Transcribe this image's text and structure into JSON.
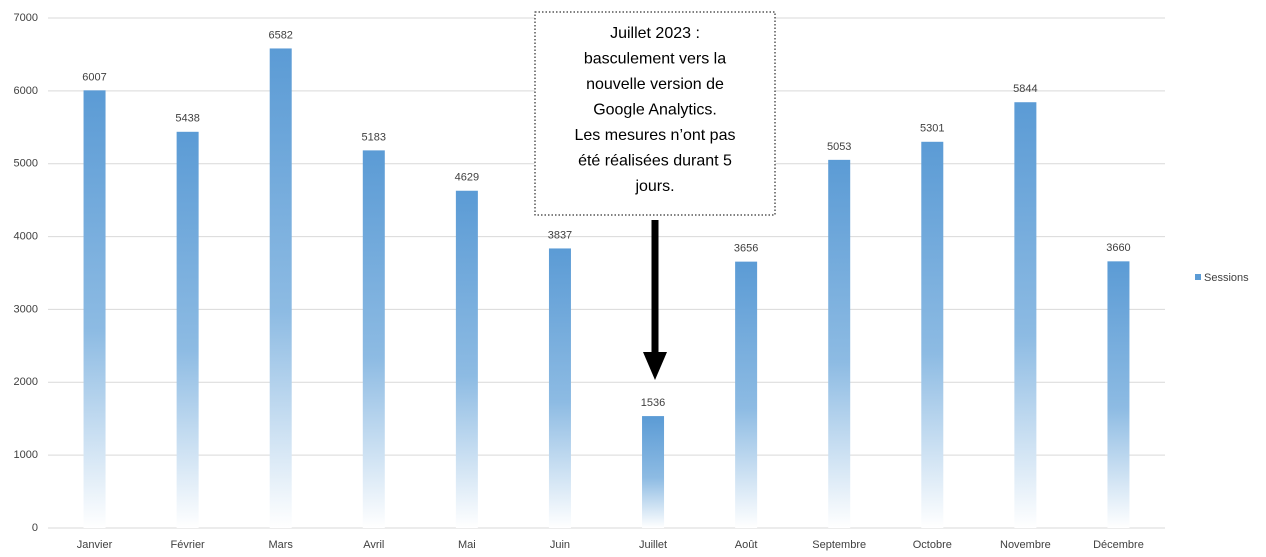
{
  "chart_data": {
    "type": "bar",
    "categories": [
      "Janvier",
      "Février",
      "Mars",
      "Avril",
      "Mai",
      "Juin",
      "Juillet",
      "Août",
      "Septembre",
      "Octobre",
      "Novembre",
      "Décembre"
    ],
    "series": [
      {
        "name": "Sessions",
        "color": "#5b9bd5",
        "values": [
          6007,
          5438,
          6582,
          5183,
          4629,
          3837,
          1536,
          3656,
          5053,
          5301,
          5844,
          3660
        ]
      }
    ],
    "ylim": [
      0,
      7000
    ],
    "yticks": [
      0,
      1000,
      2000,
      3000,
      4000,
      5000,
      6000,
      7000
    ],
    "grid": true,
    "legend": "right",
    "annotation": [
      "Juillet 2023 :",
      "basculement vers la",
      "nouvelle version de",
      "Google Analytics.",
      "Les mesures n’ont pas",
      "été réalisées durant 5",
      "jours."
    ]
  }
}
